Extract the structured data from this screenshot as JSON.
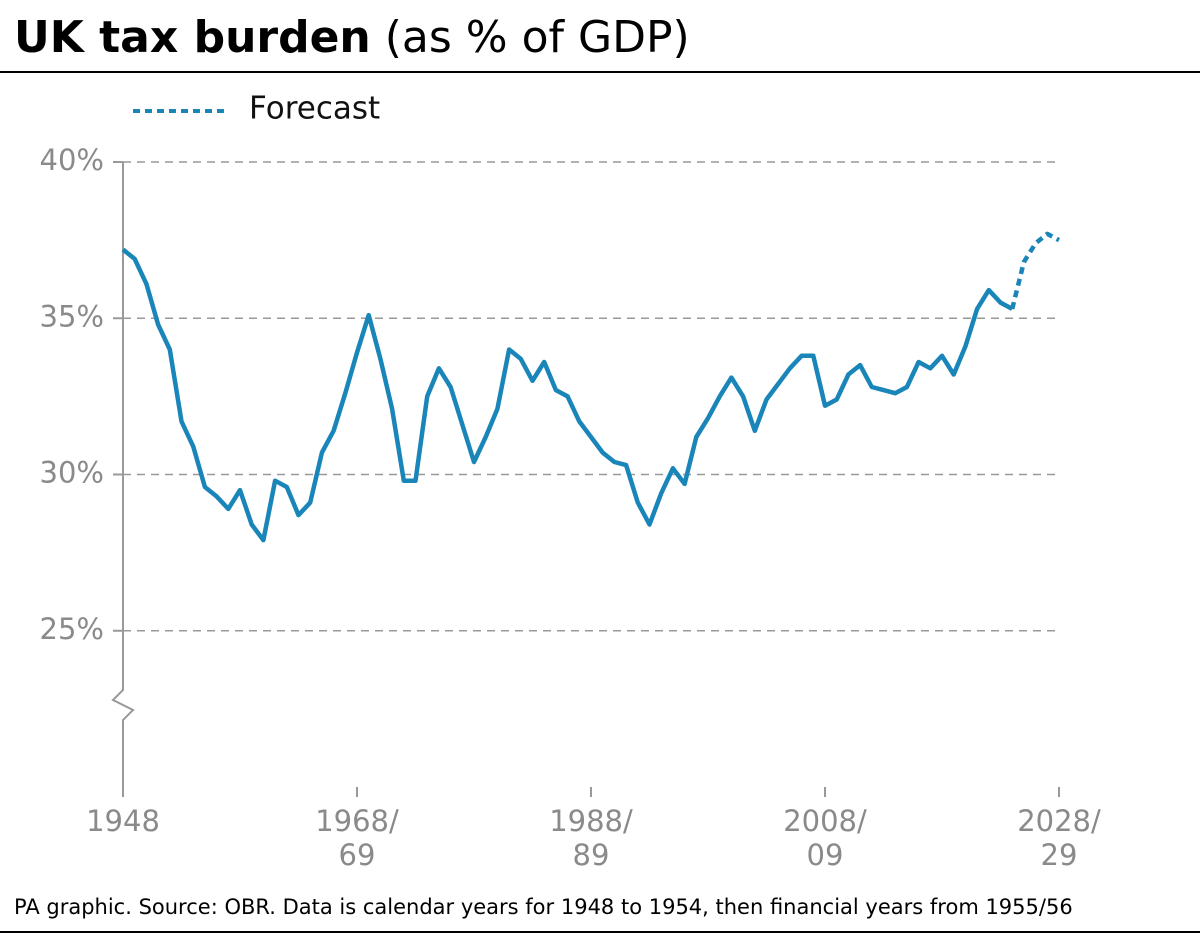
{
  "chart_data": {
    "type": "line",
    "title": "UK tax burden",
    "title_suffix": "(as % of GDP)",
    "source": "PA graphic. Source: OBR. Data is calendar years for 1948 to 1954, then financial years from 1955/56",
    "x": [
      1948,
      1949,
      1950,
      1951,
      1952,
      1953,
      1954,
      1955,
      1956,
      1957,
      1958,
      1959,
      1960,
      1961,
      1962,
      1963,
      1964,
      1965,
      1966,
      1967,
      1968,
      1969,
      1970,
      1971,
      1972,
      1973,
      1974,
      1975,
      1976,
      1977,
      1978,
      1979,
      1980,
      1981,
      1982,
      1983,
      1984,
      1985,
      1986,
      1987,
      1988,
      1989,
      1990,
      1991,
      1992,
      1993,
      1994,
      1995,
      1996,
      1997,
      1998,
      1999,
      2000,
      2001,
      2002,
      2003,
      2004,
      2005,
      2006,
      2007,
      2008,
      2009,
      2010,
      2011,
      2012,
      2013,
      2014,
      2015,
      2016,
      2017,
      2018,
      2019,
      2020,
      2021,
      2022,
      2023,
      2024,
      2025,
      2026,
      2027,
      2028
    ],
    "series": [
      {
        "color": "#1a85b8",
        "dashed": false,
        "values": [
          37.2,
          36.9,
          36.1,
          34.8,
          34.0,
          31.7,
          30.9,
          29.6,
          29.3,
          28.9,
          29.5,
          28.4,
          27.9,
          29.8,
          29.6,
          28.7,
          29.1,
          30.7,
          31.4,
          32.6,
          33.9,
          35.1,
          33.7,
          32.1,
          29.8,
          29.8,
          32.5,
          33.4,
          32.8,
          31.6,
          30.4,
          31.2,
          32.1,
          34.0,
          33.7,
          33.0,
          33.6,
          32.7,
          32.5,
          31.7,
          31.2,
          30.7,
          30.4,
          30.3,
          29.1,
          28.4,
          29.4,
          30.2,
          29.7,
          31.2,
          31.8,
          32.5,
          33.1,
          32.5,
          31.4,
          32.4,
          32.9,
          33.4,
          33.8,
          33.8,
          32.2,
          32.4,
          33.2,
          33.5,
          32.8,
          32.7,
          32.6,
          32.8,
          33.6,
          33.4,
          33.8,
          33.2,
          34.1,
          35.3,
          35.9,
          35.5,
          35.3,
          null,
          null,
          null,
          null
        ]
      },
      {
        "name": "Forecast",
        "color": "#1a85b8",
        "dashed": true,
        "values": [
          null,
          null,
          null,
          null,
          null,
          null,
          null,
          null,
          null,
          null,
          null,
          null,
          null,
          null,
          null,
          null,
          null,
          null,
          null,
          null,
          null,
          null,
          null,
          null,
          null,
          null,
          null,
          null,
          null,
          null,
          null,
          null,
          null,
          null,
          null,
          null,
          null,
          null,
          null,
          null,
          null,
          null,
          null,
          null,
          null,
          null,
          null,
          null,
          null,
          null,
          null,
          null,
          null,
          null,
          null,
          null,
          null,
          null,
          null,
          null,
          null,
          null,
          null,
          null,
          null,
          null,
          null,
          null,
          null,
          null,
          null,
          null,
          null,
          null,
          null,
          null,
          35.3,
          36.8,
          37.4,
          37.7,
          37.5
        ]
      }
    ],
    "xlim": [
      1948,
      2028
    ],
    "xticks": [
      1948,
      {
        "value": 1968,
        "label": "1968/69"
      },
      {
        "value": 1988,
        "label": "1988/89"
      },
      {
        "value": 2008,
        "label": "2008/09"
      },
      {
        "value": 2028,
        "label": "2028/29"
      }
    ],
    "ylim": [
      20,
      40
    ],
    "yticks": [
      {
        "value": 25,
        "label": "25%"
      },
      {
        "value": 30,
        "label": "30%"
      },
      {
        "value": 35,
        "label": "35%"
      },
      {
        "value": 40,
        "label": "40%"
      }
    ],
    "grid": true
  }
}
